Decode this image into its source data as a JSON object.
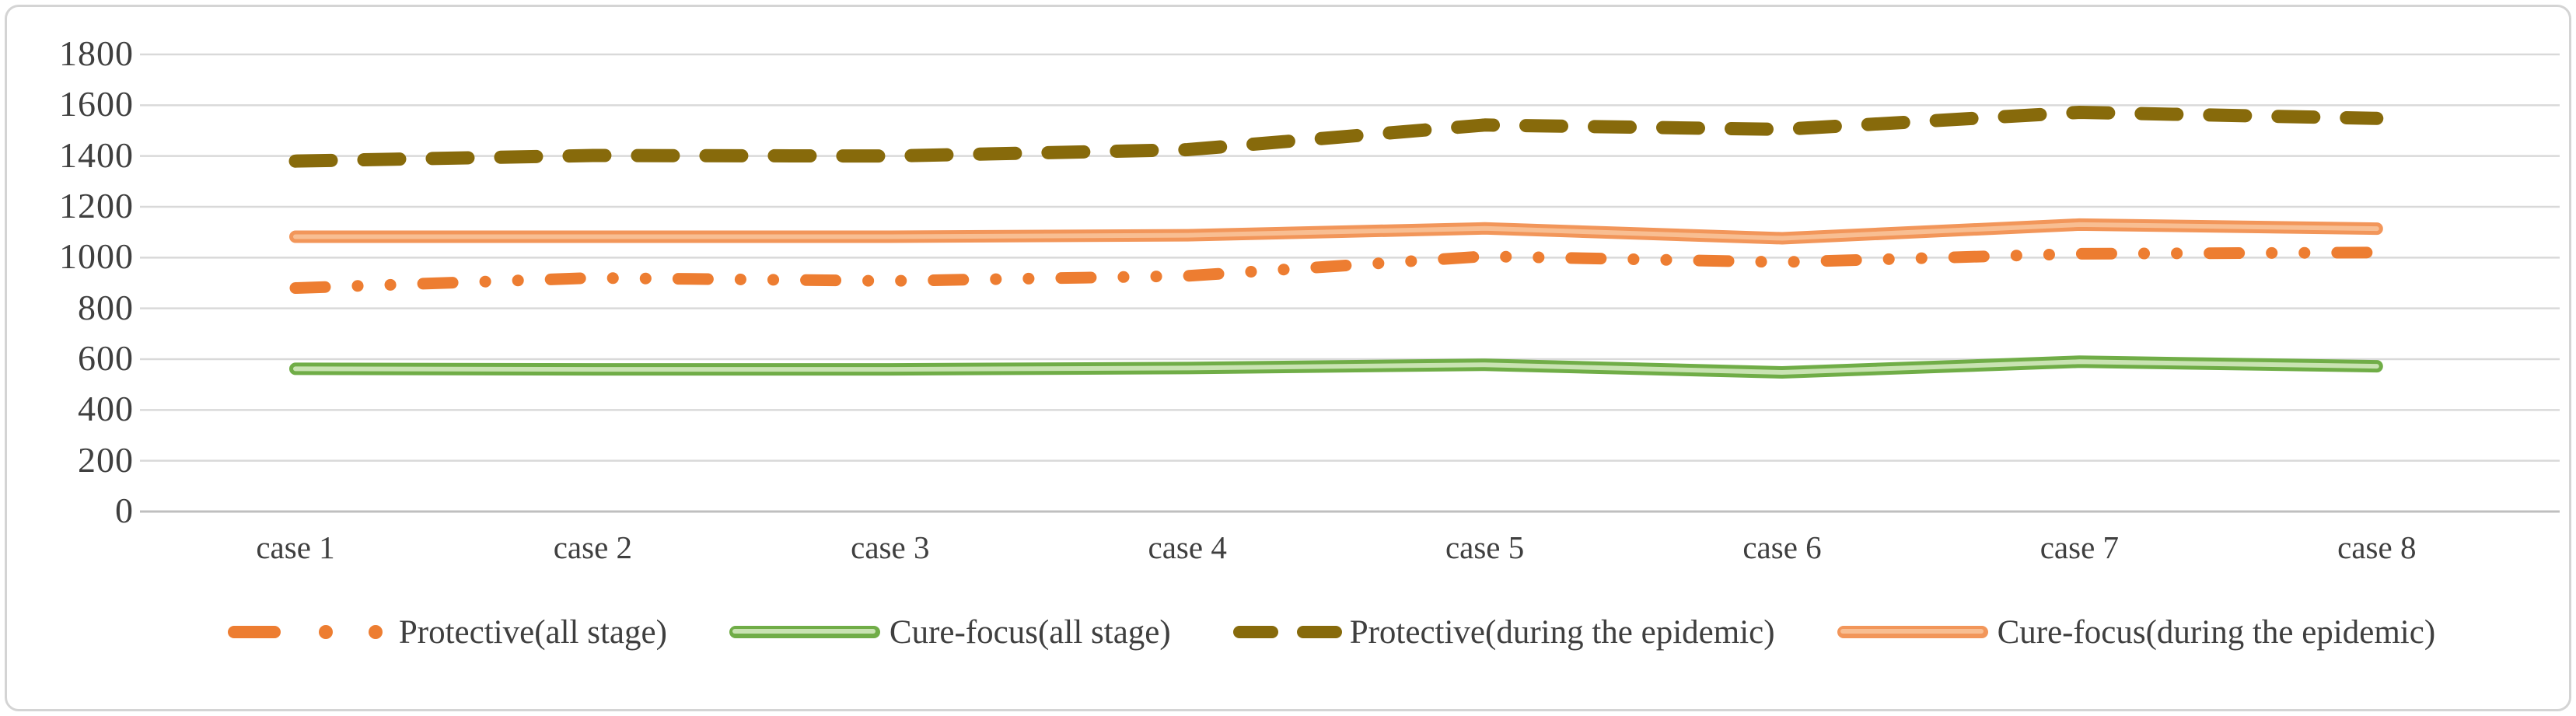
{
  "chart_data": {
    "type": "line",
    "title": "",
    "xlabel": "",
    "ylabel": "",
    "categories": [
      "case 1",
      "case 2",
      "case 3",
      "case 4",
      "case 5",
      "case 6",
      "case 7",
      "case 8"
    ],
    "y_ticks": [
      0,
      200,
      400,
      600,
      800,
      1000,
      1200,
      1400,
      1600,
      1800
    ],
    "y_tick_labels": [
      "0",
      "200",
      "400",
      "600",
      "800",
      "1000",
      "1200",
      "1400",
      "1600",
      "1800"
    ],
    "ylim": [
      0,
      1800
    ],
    "grid": true,
    "legend_position": "bottom",
    "series": [
      {
        "name": "Protective(all stage)",
        "style": "dash-dot-dot",
        "color": "#ED7D31",
        "values": [
          880,
          920,
          908,
          928,
          1005,
          982,
          1015,
          1020
        ]
      },
      {
        "name": "Cure-focus(all stage)",
        "style": "solid",
        "color": "#70AD47",
        "highlight": "#C9E3B2",
        "values": [
          562,
          560,
          560,
          565,
          578,
          548,
          590,
          572
        ]
      },
      {
        "name": "Protective(during the epidemic)",
        "style": "dash",
        "color": "#876A0B",
        "values": [
          1380,
          1402,
          1400,
          1425,
          1522,
          1505,
          1572,
          1548
        ]
      },
      {
        "name": "Cure-focus(during the epidemic)",
        "style": "solid",
        "color": "#F2965A",
        "highlight": "#F8BE92",
        "values": [
          1082,
          1082,
          1082,
          1088,
          1115,
          1076,
          1130,
          1114
        ]
      }
    ],
    "colors": {
      "gridline": "#D9D9D9",
      "axis_line": "#BFBFBF",
      "tick_text": "#3F3F3F",
      "frame_border": "#D4D4D4",
      "background": "#FFFFFF"
    }
  }
}
